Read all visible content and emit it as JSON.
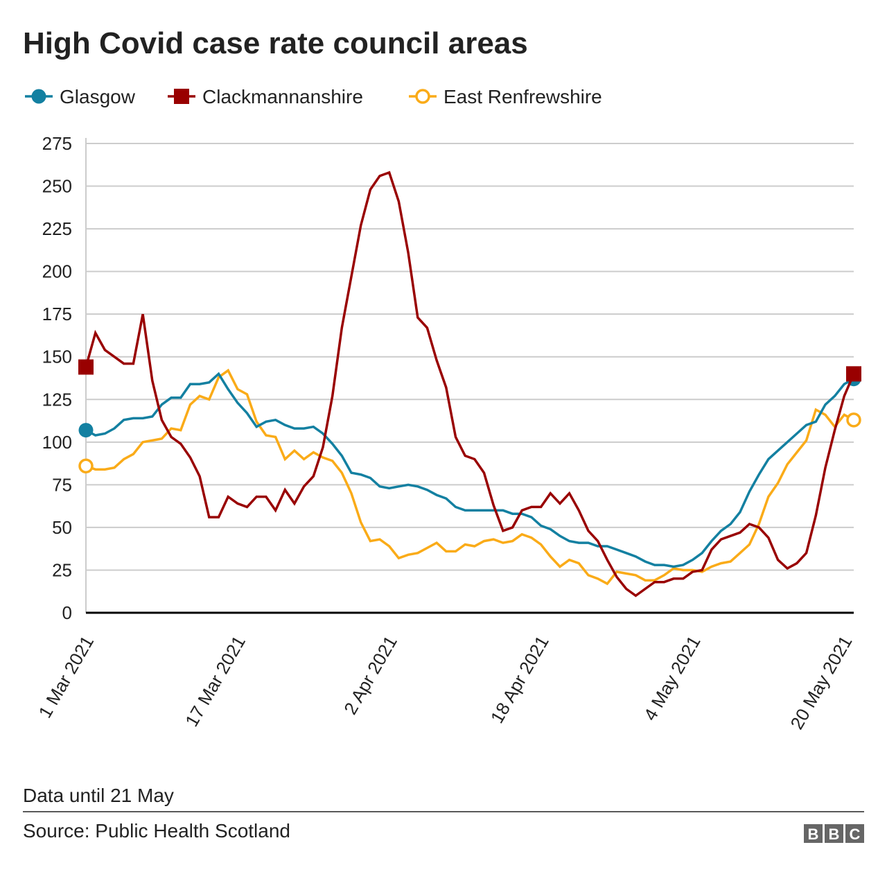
{
  "chart_data": {
    "type": "line",
    "title": "High Covid case rate council areas",
    "xlabel": "",
    "ylabel": "",
    "ylim": [
      0,
      275
    ],
    "yticks": [
      0,
      25,
      50,
      75,
      100,
      125,
      150,
      175,
      200,
      225,
      250,
      275
    ],
    "xtick_labels": [
      "1 Mar 2021",
      "17 Mar 2021",
      "2 Apr 2021",
      "18 Apr 2021",
      "4 May 2021",
      "20 May 2021"
    ],
    "xtick_dates": [
      "2021-03-01",
      "2021-03-17",
      "2021-04-02",
      "2021-04-18",
      "2021-05-04",
      "2021-05-20"
    ],
    "grid": true,
    "legend_position": "top-left",
    "x": [
      "2021-03-01",
      "2021-03-02",
      "2021-03-03",
      "2021-03-04",
      "2021-03-05",
      "2021-03-06",
      "2021-03-07",
      "2021-03-08",
      "2021-03-09",
      "2021-03-10",
      "2021-03-11",
      "2021-03-12",
      "2021-03-13",
      "2021-03-14",
      "2021-03-15",
      "2021-03-16",
      "2021-03-17",
      "2021-03-18",
      "2021-03-19",
      "2021-03-20",
      "2021-03-21",
      "2021-03-22",
      "2021-03-23",
      "2021-03-24",
      "2021-03-25",
      "2021-03-26",
      "2021-03-27",
      "2021-03-28",
      "2021-03-29",
      "2021-03-30",
      "2021-03-31",
      "2021-04-01",
      "2021-04-02",
      "2021-04-03",
      "2021-04-04",
      "2021-04-05",
      "2021-04-06",
      "2021-04-07",
      "2021-04-08",
      "2021-04-09",
      "2021-04-10",
      "2021-04-11",
      "2021-04-12",
      "2021-04-13",
      "2021-04-14",
      "2021-04-15",
      "2021-04-16",
      "2021-04-17",
      "2021-04-18",
      "2021-04-19",
      "2021-04-20",
      "2021-04-21",
      "2021-04-22",
      "2021-04-23",
      "2021-04-24",
      "2021-04-25",
      "2021-04-26",
      "2021-04-27",
      "2021-04-28",
      "2021-04-29",
      "2021-04-30",
      "2021-05-01",
      "2021-05-02",
      "2021-05-03",
      "2021-05-04",
      "2021-05-05",
      "2021-05-06",
      "2021-05-07",
      "2021-05-08",
      "2021-05-09",
      "2021-05-10",
      "2021-05-11",
      "2021-05-12",
      "2021-05-13",
      "2021-05-14",
      "2021-05-15",
      "2021-05-16",
      "2021-05-17",
      "2021-05-18",
      "2021-05-19",
      "2021-05-20",
      "2021-05-21"
    ],
    "series": [
      {
        "name": "Glasgow",
        "color": "#1380A1",
        "marker": "filled-circle",
        "values": [
          107,
          104,
          105,
          108,
          113,
          114,
          114,
          115,
          122,
          126,
          126,
          134,
          134,
          135,
          140,
          131,
          123,
          117,
          109,
          112,
          113,
          110,
          108,
          108,
          109,
          105,
          99,
          92,
          82,
          81,
          79,
          74,
          73,
          74,
          75,
          74,
          72,
          69,
          67,
          62,
          60,
          60,
          60,
          60,
          60,
          58,
          58,
          56,
          51,
          49,
          45,
          42,
          41,
          41,
          39,
          39,
          37,
          35,
          33,
          30,
          28,
          28,
          27,
          28,
          31,
          35,
          42,
          48,
          52,
          59,
          71,
          81,
          90,
          95,
          100,
          105,
          110,
          112,
          122,
          127,
          134,
          137
        ]
      },
      {
        "name": "Clackmannanshire",
        "color": "#990000",
        "marker": "filled-square",
        "values": [
          144,
          164,
          154,
          150,
          146,
          146,
          175,
          136,
          113,
          103,
          99,
          91,
          80,
          56,
          56,
          68,
          64,
          62,
          68,
          68,
          60,
          72,
          64,
          74,
          80,
          97,
          127,
          167,
          197,
          227,
          248,
          256,
          258,
          241,
          211,
          173,
          167,
          148,
          132,
          103,
          92,
          90,
          82,
          63,
          48,
          50,
          60,
          62,
          62,
          70,
          64,
          70,
          60,
          48,
          42,
          31,
          21,
          14,
          10,
          14,
          18,
          18,
          20,
          20,
          24,
          25,
          37,
          43,
          45,
          47,
          52,
          50,
          44,
          31,
          26,
          29,
          35,
          57,
          85,
          107,
          127,
          140
        ]
      },
      {
        "name": "East Renfrewshire",
        "color": "#FAAB18",
        "marker": "open-circle",
        "values": [
          86,
          84,
          84,
          85,
          90,
          93,
          100,
          101,
          102,
          108,
          107,
          122,
          127,
          125,
          138,
          142,
          131,
          128,
          112,
          104,
          103,
          90,
          95,
          90,
          94,
          91,
          89,
          82,
          70,
          53,
          42,
          43,
          39,
          32,
          34,
          35,
          38,
          41,
          36,
          36,
          40,
          39,
          42,
          43,
          41,
          42,
          46,
          44,
          40,
          33,
          27,
          31,
          29,
          22,
          20,
          17,
          24,
          23,
          22,
          19,
          19,
          22,
          26,
          25,
          25,
          24,
          27,
          29,
          30,
          35,
          40,
          52,
          68,
          76,
          87,
          94,
          101,
          119,
          116,
          109,
          116,
          113
        ]
      }
    ]
  },
  "footer": {
    "note": "Data until 21 May",
    "source": "Source: Public Health Scotland",
    "logo_text": "BBC"
  }
}
